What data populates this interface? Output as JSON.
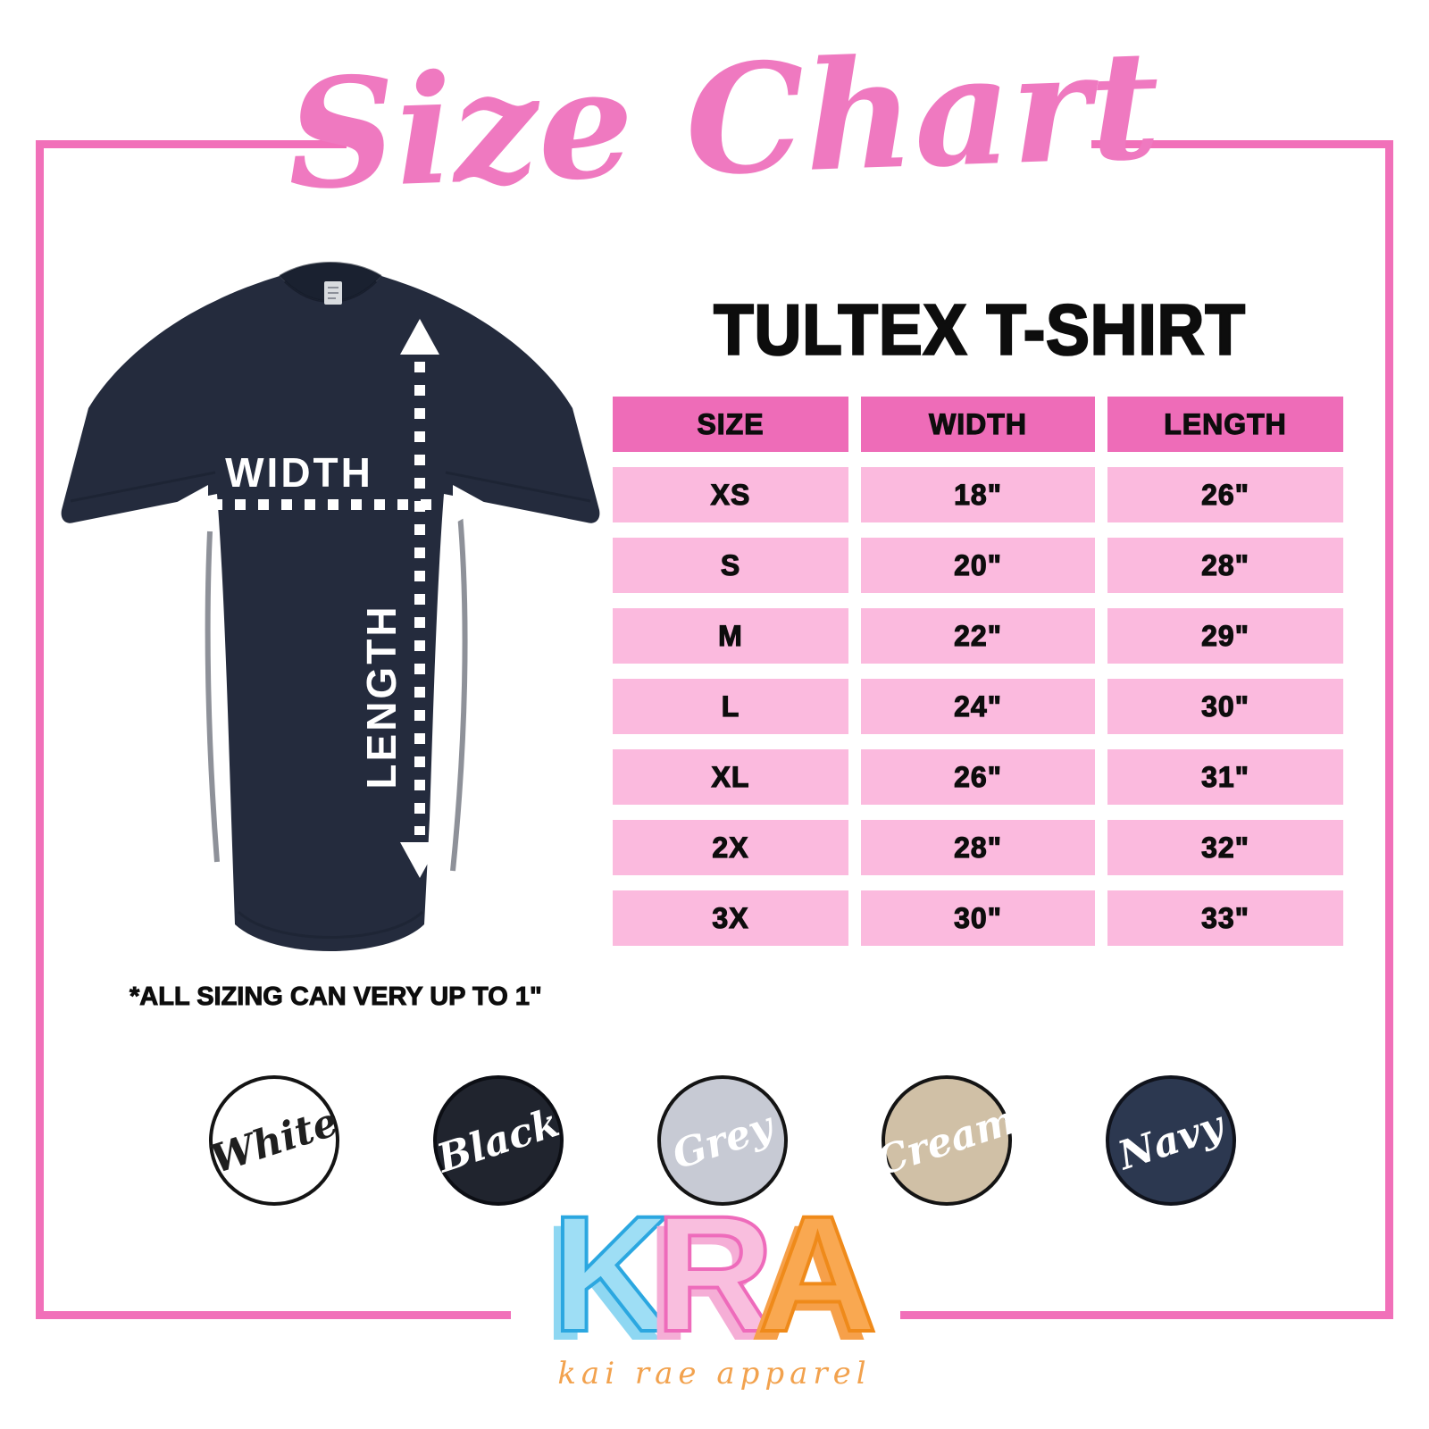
{
  "title": "Size Chart",
  "product": {
    "name": "TULTEX T-SHIRT"
  },
  "shirt": {
    "color_name": "Navy",
    "width_label": "WIDTH",
    "length_label": "LENGTH"
  },
  "table": {
    "headers": [
      "SIZE",
      "WIDTH",
      "LENGTH"
    ],
    "rows": [
      {
        "size": "XS",
        "width": "18\"",
        "length": "26\""
      },
      {
        "size": "S",
        "width": "20\"",
        "length": "28\""
      },
      {
        "size": "M",
        "width": "22\"",
        "length": "29\""
      },
      {
        "size": "L",
        "width": "24\"",
        "length": "30\""
      },
      {
        "size": "XL",
        "width": "26\"",
        "length": "31\""
      },
      {
        "size": "2X",
        "width": "28\"",
        "length": "32\""
      },
      {
        "size": "3X",
        "width": "30\"",
        "length": "33\""
      }
    ]
  },
  "note": "*ALL SIZING CAN VERY UP TO 1\"",
  "color_options": [
    {
      "label": "White",
      "bg": "#ffffff",
      "text": "#1f1f1f",
      "ring": "#141414"
    },
    {
      "label": "Black",
      "bg": "#20242e",
      "text": "#ffffff",
      "ring": "#0c0e14"
    },
    {
      "label": "Grey",
      "bg": "#c7cad4",
      "text": "#ffffff",
      "ring": "#141414"
    },
    {
      "label": "Cream",
      "bg": "#d0c0a6",
      "text": "#ffffff",
      "ring": "#141414"
    },
    {
      "label": "Navy",
      "bg": "#2c3850",
      "text": "#ffffff",
      "ring": "#10131c"
    }
  ],
  "logo": {
    "letters": [
      {
        "char": "K",
        "fill": "#9edef5",
        "outline": "#2ba7e0",
        "shadow": "#8ed7f2"
      },
      {
        "char": "R",
        "fill": "#f9bede",
        "outline": "#ee6bbb",
        "shadow": "#f5aed6"
      },
      {
        "char": "A",
        "fill": "#f9a851",
        "outline": "#ef8a1a",
        "shadow": "#f6a04a"
      }
    ],
    "tagline": "kai rae apparel",
    "tagline_color": "#f2a24e"
  },
  "theme": {
    "border_pink": "#f170b9",
    "header_pink": "#ee6cb8",
    "row_pink": "#fbbade",
    "title_pink": "#ef79c0",
    "shirt_navy": "#242b3d",
    "ink": "#0d0d0d"
  }
}
